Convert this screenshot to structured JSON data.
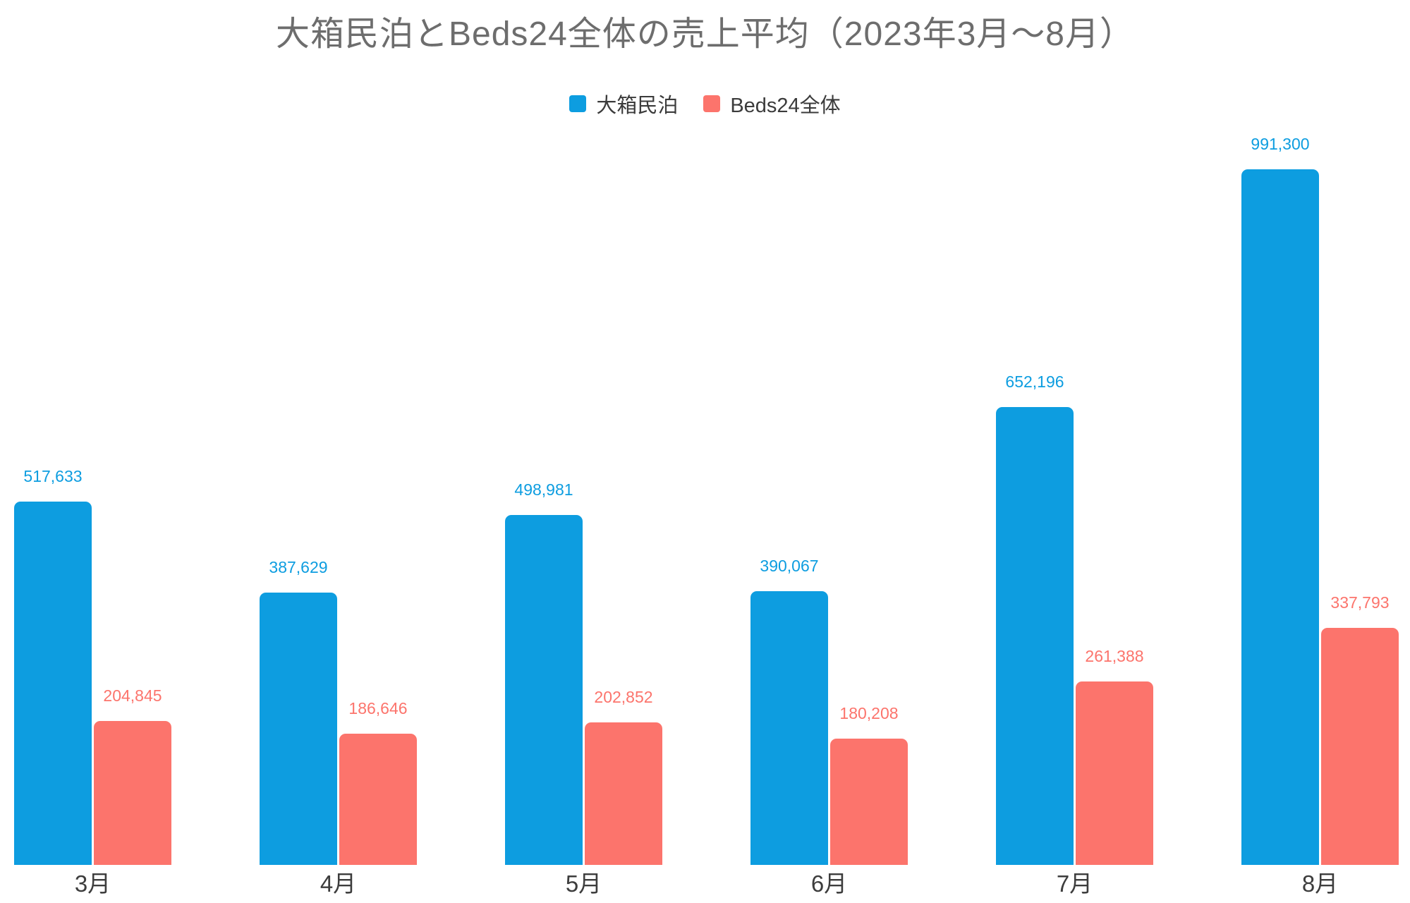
{
  "chart_data": {
    "type": "bar",
    "title": "大箱民泊とBeds24全体の売上平均（2023年3月〜8月）",
    "categories": [
      "3月",
      "4月",
      "5月",
      "6月",
      "7月",
      "8月"
    ],
    "series": [
      {
        "name": "大箱民泊",
        "color": "#0d9de0",
        "values": [
          517633,
          387629,
          498981,
          390067,
          652196,
          991300
        ],
        "labels": [
          "517,633",
          "387,629",
          "498,981",
          "390,067",
          "652,196",
          "991,300"
        ]
      },
      {
        "name": "Beds24全体",
        "color": "#fc746c",
        "values": [
          204845,
          186646,
          202852,
          180208,
          261388,
          337793
        ],
        "labels": [
          "204,845",
          "186,646",
          "202,852",
          "180,208",
          "261,388",
          "337,793"
        ]
      }
    ],
    "ylim": [
      0,
      1000000
    ],
    "grid": false,
    "legend_position": "top",
    "value_labels_shown": true
  },
  "colors": {
    "title_text": "#6d6d6d",
    "axis_text": "#3d3d3d",
    "legend_text": "#3b3b3b",
    "background": "#ffffff"
  }
}
